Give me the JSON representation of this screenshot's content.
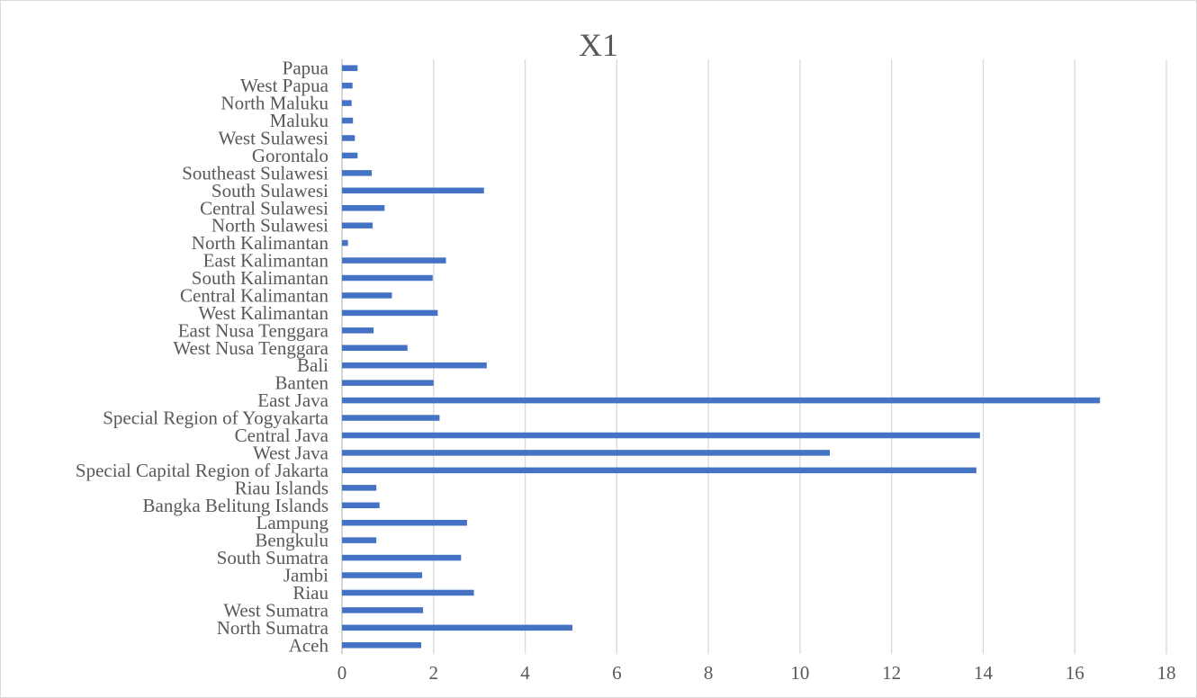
{
  "chart_data": {
    "type": "bar",
    "orientation": "horizontal",
    "title": "X1",
    "xlabel": "",
    "ylabel": "",
    "xlim": [
      0,
      18
    ],
    "xticks": [
      0,
      2,
      4,
      6,
      8,
      10,
      12,
      14,
      16,
      18
    ],
    "grid": true,
    "legend": "none",
    "bar_color": "#4472c4",
    "categories": [
      "Aceh",
      "North Sumatra",
      "West Sumatra",
      "Riau",
      "Jambi",
      "South Sumatra",
      "Bengkulu",
      "Lampung",
      "Bangka Belitung Islands",
      "Riau Islands",
      "Special Capital Region of Jakarta",
      "West Java",
      "Central Java",
      "Special Region of Yogyakarta",
      "East Java",
      "Banten",
      "Bali",
      "West Nusa Tenggara",
      "East Nusa Tenggara",
      "West Kalimantan",
      "Central Kalimantan",
      "South Kalimantan",
      "East Kalimantan",
      "North Kalimantan",
      "North Sulawesi",
      "Central Sulawesi",
      "South Sulawesi",
      "Southeast Sulawesi",
      "Gorontalo",
      "West Sulawesi",
      "Maluku",
      "North Maluku",
      "West Papua",
      "Papua"
    ],
    "values": [
      1.73,
      5.03,
      1.77,
      2.88,
      1.75,
      2.6,
      0.75,
      2.73,
      0.82,
      0.75,
      13.85,
      10.65,
      13.93,
      2.13,
      16.55,
      2.0,
      3.16,
      1.43,
      0.69,
      2.09,
      1.09,
      1.98,
      2.27,
      0.13,
      0.67,
      0.93,
      3.1,
      0.65,
      0.34,
      0.28,
      0.24,
      0.21,
      0.23,
      0.34
    ]
  }
}
